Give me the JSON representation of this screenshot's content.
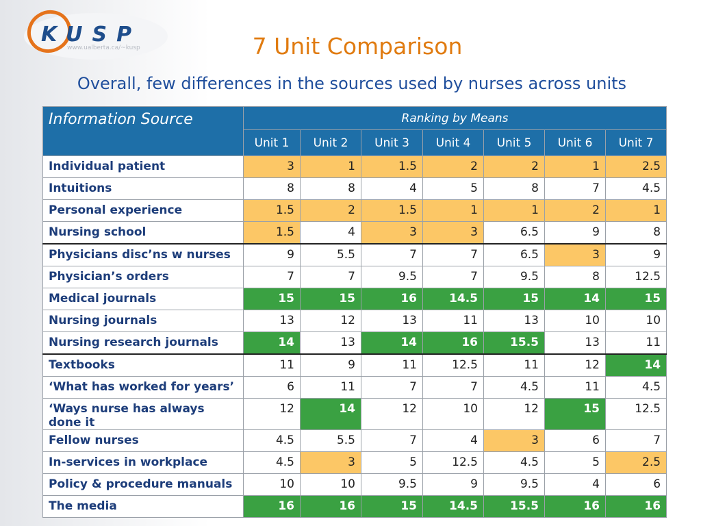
{
  "logo": {
    "name": "KUSP",
    "url": "www.ualberta.ca/~kusp"
  },
  "title": "7 Unit Comparison",
  "subtitle": "Overall, few differences in the sources used by nurses across units",
  "table": {
    "header": {
      "source": "Information Source",
      "group": "Ranking by Means",
      "units": [
        "Unit 1",
        "Unit 2",
        "Unit 3",
        "Unit 4",
        "Unit 5",
        "Unit 6",
        "Unit 7"
      ]
    },
    "rows": [
      {
        "label": "Individual patient",
        "cells": [
          "3",
          "1",
          "1.5",
          "2",
          "2",
          "1",
          "2.5"
        ]
      },
      {
        "label": "Intuitions",
        "cells": [
          "8",
          "8",
          "4",
          "5",
          "8",
          "7",
          "4.5"
        ]
      },
      {
        "label": "Personal experience",
        "cells": [
          "1.5",
          "2",
          "1.5",
          "1",
          "1",
          "2",
          "1"
        ]
      },
      {
        "label": "Nursing school",
        "cells": [
          "1.5",
          "4",
          "3",
          "3",
          "6.5",
          "9",
          "8"
        ]
      },
      {
        "label": "Physicians disc’ns w  nurses",
        "cells": [
          "9",
          "5.5",
          "7",
          "7",
          "6.5",
          "3",
          "9"
        ]
      },
      {
        "label": "Physician’s orders",
        "cells": [
          "7",
          "7",
          "9.5",
          "7",
          "9.5",
          "8",
          "12.5"
        ]
      },
      {
        "label": "Medical journals",
        "cells": [
          "15",
          "15",
          "16",
          "14.5",
          "15",
          "14",
          "15"
        ]
      },
      {
        "label": "Nursing journals",
        "cells": [
          "13",
          "12",
          "13",
          "11",
          "13",
          "10",
          "10"
        ]
      },
      {
        "label": "Nursing research journals",
        "cells": [
          "14",
          "13",
          "14",
          "16",
          "15.5",
          "13",
          "11"
        ]
      },
      {
        "label": "Textbooks",
        "cells": [
          "11",
          "9",
          "11",
          "12.5",
          "11",
          "12",
          "14"
        ]
      },
      {
        "label": "‘What has worked for years’",
        "cells": [
          "6",
          "11",
          "7",
          "7",
          "4.5",
          "11",
          "4.5"
        ]
      },
      {
        "label": "‘Ways nurse has always done it",
        "cells": [
          "12",
          "14",
          "12",
          "10",
          "12",
          "15",
          "12.5"
        ]
      },
      {
        "label": "Fellow nurses",
        "cells": [
          "4.5",
          "5.5",
          "7",
          "4",
          "3",
          "6",
          "7"
        ]
      },
      {
        "label": "In-services in workplace",
        "cells": [
          "4.5",
          "3",
          "5",
          "12.5",
          "4.5",
          "5",
          "2.5"
        ]
      },
      {
        "label": "Policy & procedure manuals",
        "cells": [
          "10",
          "10",
          "9.5",
          "9",
          "9.5",
          "4",
          "6"
        ]
      },
      {
        "label": "The media",
        "cells": [
          "16",
          "16",
          "15",
          "14.5",
          "15.5",
          "16",
          "16"
        ]
      }
    ]
  }
}
